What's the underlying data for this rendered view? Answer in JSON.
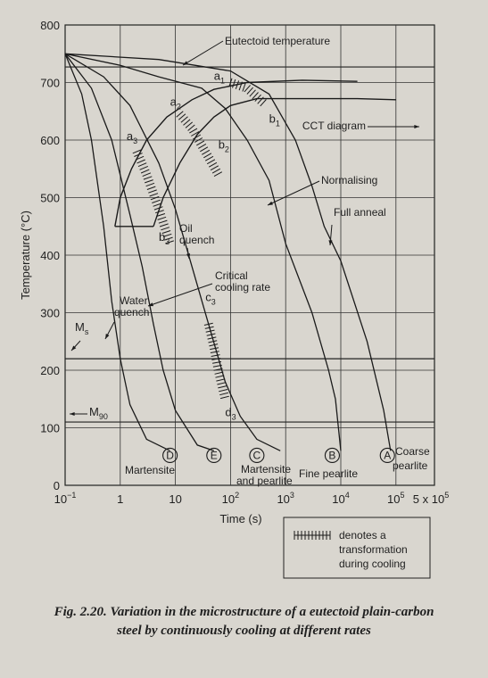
{
  "chart_data": {
    "type": "line",
    "title": "",
    "xlabel": "Time (s)",
    "ylabel": "Temperature (°C)",
    "x_scale": "log",
    "xlim": [
      0.1,
      500000
    ],
    "ylim": [
      0,
      800
    ],
    "x_ticks": [
      {
        "value": 0.1,
        "base": "10",
        "exp": "−1"
      },
      {
        "value": 1,
        "label": "1"
      },
      {
        "value": 10,
        "label": "10"
      },
      {
        "value": 100,
        "base": "10",
        "exp": "2"
      },
      {
        "value": 1000,
        "base": "10",
        "exp": "3"
      },
      {
        "value": 10000,
        "base": "10",
        "exp": "4"
      },
      {
        "value": 100000,
        "base": "10",
        "exp": "5"
      },
      {
        "value": 500000,
        "label": "5 x 10",
        "exp": "5"
      }
    ],
    "y_ticks": [
      0,
      100,
      200,
      300,
      400,
      500,
      600,
      700,
      800
    ],
    "eutectoid_temperature": 727,
    "Ms": 220,
    "M90": 110,
    "cct_start": [
      [
        0.8,
        450
      ],
      [
        1,
        500
      ],
      [
        1.6,
        550
      ],
      [
        3,
        600
      ],
      [
        7,
        640
      ],
      [
        20,
        670
      ],
      [
        50,
        688
      ],
      [
        200,
        700
      ],
      [
        2000,
        704
      ],
      [
        20000,
        702
      ]
    ],
    "cct_finish": [
      [
        4,
        450
      ],
      [
        6,
        500
      ],
      [
        12,
        560
      ],
      [
        25,
        610
      ],
      [
        50,
        640
      ],
      [
        100,
        660
      ],
      [
        300,
        672
      ],
      [
        2000,
        672
      ],
      [
        20000,
        672
      ],
      [
        100000,
        670
      ]
    ],
    "oil_quench_start_line": [
      [
        0.8,
        450
      ],
      [
        4,
        450
      ]
    ],
    "cooling_curves": [
      {
        "id": "D",
        "points": [
          [
            0.1,
            750
          ],
          [
            0.2,
            680
          ],
          [
            0.3,
            600
          ],
          [
            0.5,
            450
          ],
          [
            0.7,
            320
          ],
          [
            1,
            220
          ],
          [
            1.5,
            140
          ],
          [
            3,
            80
          ],
          [
            8,
            60
          ]
        ]
      },
      {
        "id": "E",
        "points": [
          [
            0.1,
            750
          ],
          [
            0.3,
            690
          ],
          [
            0.7,
            600
          ],
          [
            1.5,
            470
          ],
          [
            2.5,
            380
          ],
          [
            4,
            280
          ],
          [
            6,
            200
          ],
          [
            10,
            130
          ],
          [
            25,
            70
          ],
          [
            50,
            60
          ]
        ]
      },
      {
        "id": "C",
        "points": [
          [
            0.1,
            750
          ],
          [
            0.5,
            710
          ],
          [
            1.5,
            660
          ],
          [
            5,
            560
          ],
          [
            10,
            480
          ],
          [
            20,
            380
          ],
          [
            40,
            280
          ],
          [
            80,
            180
          ],
          [
            150,
            120
          ],
          [
            300,
            80
          ],
          [
            800,
            60
          ]
        ]
      },
      {
        "id": "B",
        "points": [
          [
            0.1,
            750
          ],
          [
            1,
            730
          ],
          [
            5,
            710
          ],
          [
            30,
            690
          ],
          [
            80,
            655
          ],
          [
            200,
            600
          ],
          [
            500,
            530
          ],
          [
            1000,
            420
          ],
          [
            3000,
            300
          ],
          [
            6000,
            200
          ],
          [
            8000,
            150
          ],
          [
            10000,
            60
          ]
        ]
      },
      {
        "id": "A",
        "points": [
          [
            0.1,
            750
          ],
          [
            5,
            740
          ],
          [
            100,
            720
          ],
          [
            500,
            680
          ],
          [
            1500,
            600
          ],
          [
            3000,
            520
          ],
          [
            5000,
            450
          ],
          [
            10000,
            390
          ],
          [
            30000,
            250
          ],
          [
            60000,
            130
          ],
          [
            80000,
            60
          ]
        ]
      }
    ],
    "transformation_segments": [
      {
        "from": "a1",
        "to": "b1",
        "points": [
          [
            100,
            700
          ],
          [
            200,
            690
          ],
          [
            400,
            664
          ]
        ]
      },
      {
        "from": "a2",
        "to": "b2",
        "points": [
          [
            12,
            645
          ],
          [
            20,
            620
          ],
          [
            40,
            570
          ],
          [
            60,
            540
          ]
        ]
      },
      {
        "from": "a3",
        "to": "b3",
        "points": [
          [
            2,
            580
          ],
          [
            3,
            540
          ],
          [
            5,
            480
          ],
          [
            8,
            420
          ]
        ]
      },
      {
        "from": "c3",
        "to": "d3",
        "points": [
          [
            40,
            280
          ],
          [
            50,
            240
          ],
          [
            60,
            200
          ],
          [
            80,
            150
          ]
        ]
      }
    ],
    "point_labels": [
      {
        "text": "a",
        "sub": "1",
        "x": 50,
        "y": 705
      },
      {
        "text": "b",
        "sub": "1",
        "x": 500,
        "y": 630
      },
      {
        "text": "a",
        "sub": "2",
        "x": 8,
        "y": 660
      },
      {
        "text": "b",
        "sub": "2",
        "x": 60,
        "y": 585
      },
      {
        "text": "a",
        "sub": "3",
        "x": 1.3,
        "y": 600
      },
      {
        "text": "b",
        "sub": "3",
        "x": 5,
        "y": 425
      },
      {
        "text": "c",
        "sub": "3",
        "x": 35,
        "y": 320
      },
      {
        "text": "d",
        "sub": "3",
        "x": 80,
        "y": 120
      }
    ],
    "end_labels": [
      {
        "letter": "D",
        "x": 8,
        "y": 52
      },
      {
        "letter": "E",
        "x": 50,
        "y": 52
      },
      {
        "letter": "C",
        "x": 300,
        "y": 52
      },
      {
        "letter": "B",
        "x": 7000,
        "y": 52
      },
      {
        "letter": "A",
        "x": 70000,
        "y": 52
      }
    ],
    "annotations": {
      "eutectoid": "Eutectoid temperature",
      "cct": "CCT diagram",
      "normalising": "Normalising",
      "full_anneal": "Full anneal",
      "oil_1": "Oil",
      "oil_2": "quench",
      "critical_1": "Critical",
      "critical_2": "cooling rate",
      "water_1": "Water",
      "water_2": "quench",
      "ms": "M",
      "ms_sub": "s",
      "m90": "M",
      "m90_sub": "90",
      "martensite": "Martensite",
      "mart_pearl_1": "Martensite",
      "mart_pearl_2": "and pearlite",
      "fine_pearlite": "Fine pearlite",
      "coarse_1": "Coarse",
      "coarse_2": "pearlite"
    },
    "legend": {
      "line1": "denotes a",
      "line2": "transformation",
      "line3": "during cooling"
    }
  },
  "caption": {
    "line1": "Fig. 2.20. Variation in the microstructure of a eutectoid plain-carbon",
    "line2": "steel by continuously cooling at different rates"
  }
}
